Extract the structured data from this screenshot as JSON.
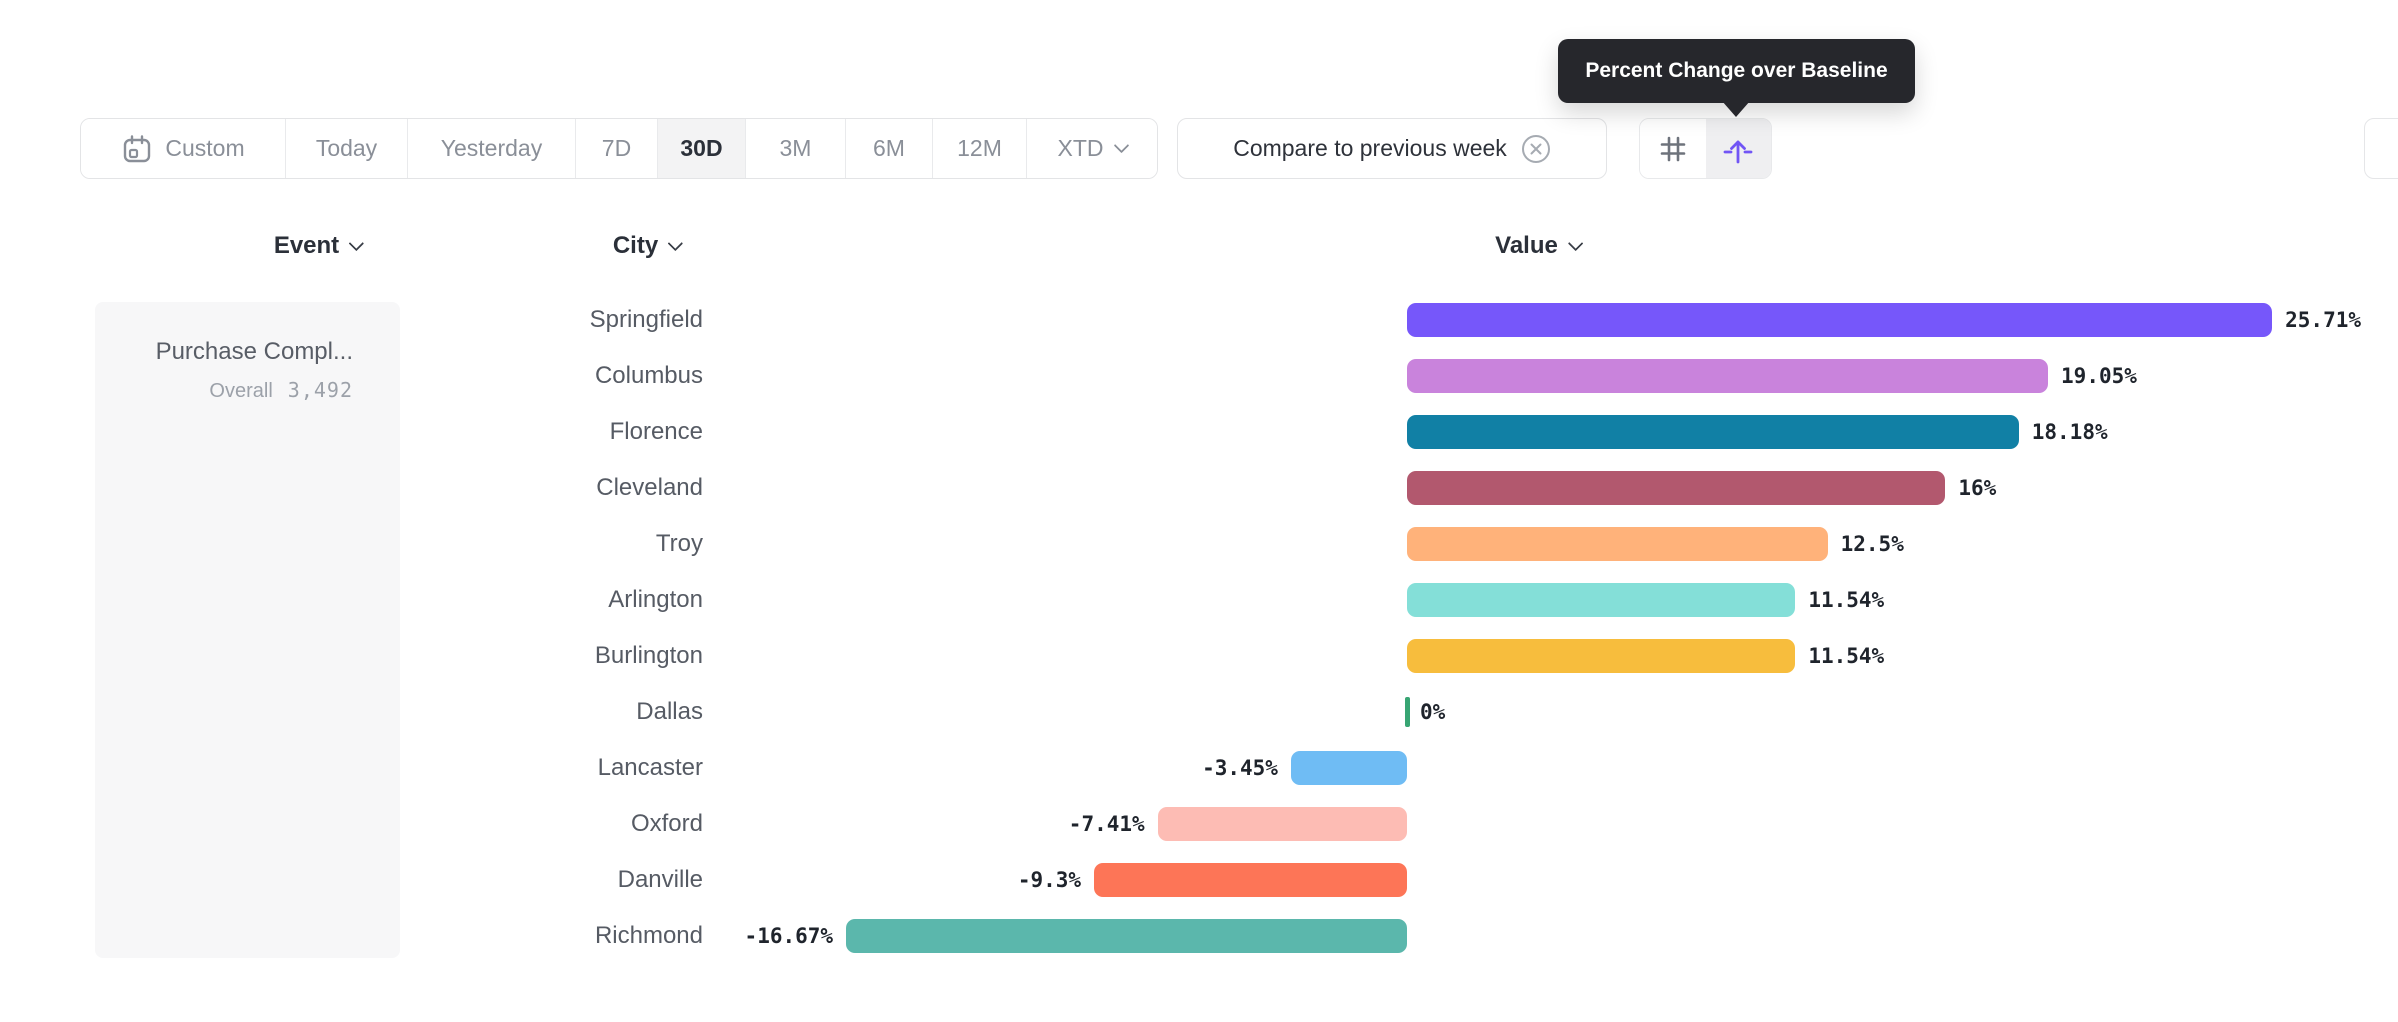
{
  "tooltip": {
    "text": "Percent Change over Baseline"
  },
  "toolbar": {
    "date_ranges": [
      {
        "label": "Custom",
        "icon": "calendar",
        "active": false
      },
      {
        "label": "Today",
        "active": false
      },
      {
        "label": "Yesterday",
        "active": false
      },
      {
        "label": "7D",
        "active": false
      },
      {
        "label": "30D",
        "active": true
      },
      {
        "label": "3M",
        "active": false
      },
      {
        "label": "6M",
        "active": false
      },
      {
        "label": "12M",
        "active": false
      },
      {
        "label": "XTD",
        "chevron": true,
        "active": false
      }
    ],
    "compare_label": "Compare to previous week",
    "view_toggles": [
      {
        "name": "grid-view",
        "icon": "grid-icon",
        "active": false
      },
      {
        "name": "baseline-view",
        "icon": "baseline-arrow-icon",
        "active": true
      }
    ],
    "accent_color": "#7155f5"
  },
  "columns": {
    "event": "Event",
    "city": "City",
    "value": "Value"
  },
  "event_cell": {
    "name": "Purchase Compl...",
    "overall_label": "Overall",
    "overall_value": "3,492"
  },
  "chart_data": {
    "type": "bar",
    "orientation": "horizontal",
    "title": "Percent Change over Baseline",
    "xlabel": "",
    "ylabel": "City",
    "value_format": "percent",
    "grid": false,
    "legend": false,
    "xlim": [
      -16.67,
      25.71
    ],
    "categories": [
      "Springfield",
      "Columbus",
      "Florence",
      "Cleveland",
      "Troy",
      "Arlington",
      "Burlington",
      "Dallas",
      "Lancaster",
      "Oxford",
      "Danville",
      "Richmond"
    ],
    "values": [
      25.71,
      19.05,
      18.18,
      16,
      12.5,
      11.54,
      11.54,
      0,
      -3.45,
      -7.41,
      -9.3,
      -16.67
    ],
    "labels": [
      "25.71%",
      "19.05%",
      "18.18%",
      "16%",
      "12.5%",
      "11.54%",
      "11.54%",
      "0%",
      "-3.45%",
      "-7.41%",
      "-9.3%",
      "-16.67%"
    ],
    "colors": [
      "#7657fa",
      "#c983dc",
      "#1180a5",
      "#b2586e",
      "#ffb27a",
      "#84dfd8",
      "#f7bd3d",
      "#37a573",
      "#6fbcf4",
      "#fdbcb4",
      "#fd7557",
      "#5bb7ac"
    ]
  }
}
